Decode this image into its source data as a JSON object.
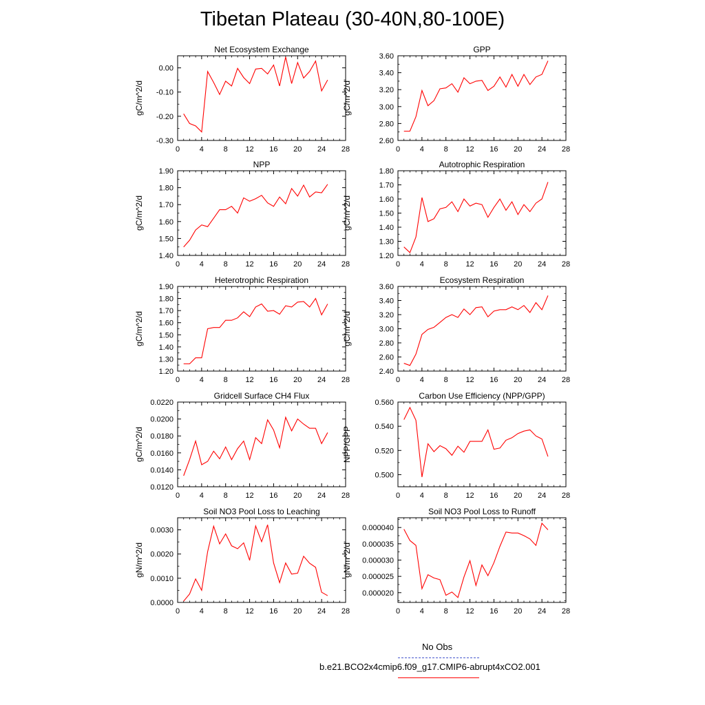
{
  "title": "Tibetan Plateau (30-40N,80-100E)",
  "chart_data": [
    {
      "type": "line",
      "title": "Net Ecosystem Exchange",
      "ylabel": "gC/m^2/d",
      "xlim": [
        0,
        28
      ],
      "ylim": [
        -0.3,
        0.05
      ],
      "xticks": [
        "0",
        "4",
        "8",
        "12",
        "16",
        "20",
        "24",
        "28"
      ],
      "yticks": [
        "0.00",
        "-0.10",
        "-0.20",
        "-0.30"
      ],
      "ytick_values": [
        0.0,
        -0.1,
        -0.2,
        -0.3
      ],
      "x": [
        1,
        2,
        3,
        4,
        5,
        6,
        7,
        8,
        9,
        10,
        11,
        12,
        13,
        14,
        15,
        16,
        17,
        18,
        19,
        20,
        21,
        22,
        23,
        24,
        25
      ],
      "series": [
        {
          "values": [
            -0.19,
            -0.23,
            -0.24,
            -0.265,
            -0.015,
            -0.06,
            -0.11,
            -0.055,
            -0.075,
            -0.002,
            -0.04,
            -0.065,
            -0.005,
            -0.002,
            -0.025,
            0.012,
            -0.075,
            0.045,
            -0.065,
            0.022,
            -0.042,
            -0.015,
            0.028,
            -0.095,
            -0.05
          ],
          "color": "#ff0000"
        }
      ]
    },
    {
      "type": "line",
      "title": "GPP",
      "ylabel": "gC/m^2/d",
      "xlim": [
        0,
        28
      ],
      "ylim": [
        2.6,
        3.6
      ],
      "xticks": [
        "0",
        "4",
        "8",
        "12",
        "16",
        "20",
        "24",
        "28"
      ],
      "yticks": [
        "3.60",
        "3.40",
        "3.20",
        "3.00",
        "2.80",
        "2.60"
      ],
      "ytick_values": [
        3.6,
        3.4,
        3.2,
        3.0,
        2.8,
        2.6
      ],
      "x": [
        1,
        2,
        3,
        4,
        5,
        6,
        7,
        8,
        9,
        10,
        11,
        12,
        13,
        14,
        15,
        16,
        17,
        18,
        19,
        20,
        21,
        22,
        23,
        24,
        25
      ],
      "series": [
        {
          "values": [
            2.71,
            2.71,
            2.88,
            3.19,
            3.01,
            3.07,
            3.21,
            3.22,
            3.27,
            3.17,
            3.34,
            3.27,
            3.3,
            3.31,
            3.19,
            3.24,
            3.35,
            3.23,
            3.38,
            3.24,
            3.38,
            3.26,
            3.35,
            3.38,
            3.54
          ],
          "color": "#ff0000"
        }
      ]
    },
    {
      "type": "line",
      "title": "NPP",
      "ylabel": "gC/m^2/d",
      "xlim": [
        0,
        28
      ],
      "ylim": [
        1.4,
        1.9
      ],
      "xticks": [
        "0",
        "4",
        "8",
        "12",
        "16",
        "20",
        "24",
        "28"
      ],
      "yticks": [
        "1.90",
        "1.80",
        "1.70",
        "1.60",
        "1.50",
        "1.40"
      ],
      "ytick_values": [
        1.9,
        1.8,
        1.7,
        1.6,
        1.5,
        1.4
      ],
      "x": [
        1,
        2,
        3,
        4,
        5,
        6,
        7,
        8,
        9,
        10,
        11,
        12,
        13,
        14,
        15,
        16,
        17,
        18,
        19,
        20,
        21,
        22,
        23,
        24,
        25
      ],
      "series": [
        {
          "values": [
            1.45,
            1.49,
            1.55,
            1.58,
            1.57,
            1.62,
            1.67,
            1.67,
            1.69,
            1.65,
            1.74,
            1.72,
            1.735,
            1.755,
            1.71,
            1.69,
            1.745,
            1.705,
            1.795,
            1.75,
            1.815,
            1.745,
            1.775,
            1.77,
            1.82
          ],
          "color": "#ff0000"
        }
      ]
    },
    {
      "type": "line",
      "title": "Autotrophic Respiration",
      "ylabel": "gC/m^2/d",
      "xlim": [
        0,
        28
      ],
      "ylim": [
        1.2,
        1.8
      ],
      "xticks": [
        "0",
        "4",
        "8",
        "12",
        "16",
        "20",
        "24",
        "28"
      ],
      "yticks": [
        "1.80",
        "1.70",
        "1.60",
        "1.50",
        "1.40",
        "1.30",
        "1.20"
      ],
      "ytick_values": [
        1.8,
        1.7,
        1.6,
        1.5,
        1.4,
        1.3,
        1.2
      ],
      "x": [
        1,
        2,
        3,
        4,
        5,
        6,
        7,
        8,
        9,
        10,
        11,
        12,
        13,
        14,
        15,
        16,
        17,
        18,
        19,
        20,
        21,
        22,
        23,
        24,
        25
      ],
      "series": [
        {
          "values": [
            1.26,
            1.22,
            1.33,
            1.61,
            1.44,
            1.46,
            1.53,
            1.54,
            1.58,
            1.51,
            1.6,
            1.55,
            1.57,
            1.56,
            1.47,
            1.54,
            1.6,
            1.52,
            1.58,
            1.49,
            1.56,
            1.51,
            1.57,
            1.6,
            1.72
          ],
          "color": "#ff0000"
        }
      ]
    },
    {
      "type": "line",
      "title": "Heterotrophic Respiration",
      "ylabel": "gC/m^2/d",
      "xlim": [
        0,
        28
      ],
      "ylim": [
        1.2,
        1.9
      ],
      "xticks": [
        "0",
        "4",
        "8",
        "12",
        "16",
        "20",
        "24",
        "28"
      ],
      "yticks": [
        "1.90",
        "1.80",
        "1.70",
        "1.60",
        "1.50",
        "1.40",
        "1.30",
        "1.20"
      ],
      "ytick_values": [
        1.9,
        1.8,
        1.7,
        1.6,
        1.5,
        1.4,
        1.3,
        1.2
      ],
      "x": [
        1,
        2,
        3,
        4,
        5,
        6,
        7,
        8,
        9,
        10,
        11,
        12,
        13,
        14,
        15,
        16,
        17,
        18,
        19,
        20,
        21,
        22,
        23,
        24,
        25
      ],
      "series": [
        {
          "values": [
            1.26,
            1.26,
            1.31,
            1.31,
            1.55,
            1.56,
            1.56,
            1.62,
            1.62,
            1.64,
            1.69,
            1.65,
            1.73,
            1.755,
            1.695,
            1.7,
            1.67,
            1.74,
            1.73,
            1.77,
            1.775,
            1.73,
            1.8,
            1.665,
            1.755
          ],
          "color": "#ff0000"
        }
      ]
    },
    {
      "type": "line",
      "title": "Ecosystem Respiration",
      "ylabel": "gC/m^2/d",
      "xlim": [
        0,
        28
      ],
      "ylim": [
        2.4,
        3.6
      ],
      "xticks": [
        "0",
        "4",
        "8",
        "12",
        "16",
        "20",
        "24",
        "28"
      ],
      "yticks": [
        "3.60",
        "3.40",
        "3.20",
        "3.00",
        "2.80",
        "2.60",
        "2.40"
      ],
      "ytick_values": [
        3.6,
        3.4,
        3.2,
        3.0,
        2.8,
        2.6,
        2.4
      ],
      "x": [
        1,
        2,
        3,
        4,
        5,
        6,
        7,
        8,
        9,
        10,
        11,
        12,
        13,
        14,
        15,
        16,
        17,
        18,
        19,
        20,
        21,
        22,
        23,
        24,
        25
      ],
      "series": [
        {
          "values": [
            2.51,
            2.48,
            2.64,
            2.92,
            2.99,
            3.02,
            3.09,
            3.16,
            3.2,
            3.16,
            3.28,
            3.2,
            3.3,
            3.31,
            3.17,
            3.25,
            3.27,
            3.27,
            3.31,
            3.27,
            3.33,
            3.23,
            3.37,
            3.27,
            3.47
          ],
          "color": "#ff0000"
        }
      ]
    },
    {
      "type": "line",
      "title": "Gridcell Surface CH4 Flux",
      "ylabel": "gC/m^2/d",
      "xlim": [
        0,
        28
      ],
      "ylim": [
        0.012,
        0.022
      ],
      "xticks": [
        "0",
        "4",
        "8",
        "12",
        "16",
        "20",
        "24",
        "28"
      ],
      "yticks": [
        "0.0220",
        "0.0200",
        "0.0180",
        "0.0160",
        "0.0140",
        "0.0120"
      ],
      "ytick_values": [
        0.022,
        0.02,
        0.018,
        0.016,
        0.014,
        0.012
      ],
      "x": [
        1,
        2,
        3,
        4,
        5,
        6,
        7,
        8,
        9,
        10,
        11,
        12,
        13,
        14,
        15,
        16,
        17,
        18,
        19,
        20,
        21,
        22,
        23,
        24,
        25
      ],
      "series": [
        {
          "values": [
            0.0133,
            0.0152,
            0.0174,
            0.0146,
            0.015,
            0.0162,
            0.0153,
            0.0167,
            0.0152,
            0.0165,
            0.0174,
            0.0152,
            0.0178,
            0.0171,
            0.0199,
            0.0187,
            0.0166,
            0.0202,
            0.0186,
            0.02,
            0.0194,
            0.0189,
            0.0189,
            0.0171,
            0.0184
          ],
          "color": "#ff0000"
        }
      ]
    },
    {
      "type": "line",
      "title": "Carbon Use Efficiency (NPP/GPP)",
      "ylabel": "NPP/GPP",
      "xlim": [
        0,
        28
      ],
      "ylim": [
        0.49,
        0.56
      ],
      "xticks": [
        "0",
        "4",
        "8",
        "12",
        "16",
        "20",
        "24",
        "28"
      ],
      "yticks": [
        "0.560",
        "0.540",
        "0.520",
        "0.500"
      ],
      "ytick_values": [
        0.56,
        0.54,
        0.52,
        0.5
      ],
      "x": [
        1,
        2,
        3,
        4,
        5,
        6,
        7,
        8,
        9,
        10,
        11,
        12,
        13,
        14,
        15,
        16,
        17,
        18,
        19,
        20,
        21,
        22,
        23,
        24,
        25
      ],
      "series": [
        {
          "values": [
            0.5455,
            0.5555,
            0.545,
            0.498,
            0.5255,
            0.519,
            0.524,
            0.5215,
            0.516,
            0.5235,
            0.5185,
            0.5275,
            0.5275,
            0.5275,
            0.537,
            0.521,
            0.522,
            0.5285,
            0.5305,
            0.534,
            0.536,
            0.537,
            0.532,
            0.5295,
            0.515
          ],
          "color": "#ff0000"
        }
      ]
    },
    {
      "type": "line",
      "title": "Soil NO3 Pool Loss to Leaching",
      "ylabel": "gN/m^2/d",
      "xlim": [
        0,
        28
      ],
      "ylim": [
        0.0,
        0.0035
      ],
      "xticks": [
        "0",
        "4",
        "8",
        "12",
        "16",
        "20",
        "24",
        "28"
      ],
      "yticks": [
        "0.0030",
        "0.0020",
        "0.0010",
        "0.0000"
      ],
      "ytick_values": [
        0.003,
        0.002,
        0.001,
        0.0
      ],
      "x": [
        1,
        2,
        3,
        4,
        5,
        6,
        7,
        8,
        9,
        10,
        11,
        12,
        13,
        14,
        15,
        16,
        17,
        18,
        19,
        20,
        21,
        22,
        23,
        24,
        25
      ],
      "series": [
        {
          "values": [
            5e-05,
            0.00035,
            0.00097,
            0.0005,
            0.0021,
            0.00315,
            0.00242,
            0.00283,
            0.00234,
            0.00222,
            0.00246,
            0.00174,
            0.00316,
            0.00251,
            0.00321,
            0.00163,
            0.00082,
            0.00163,
            0.00117,
            0.00121,
            0.00191,
            0.00162,
            0.00145,
            0.00042,
            0.00028
          ],
          "color": "#ff0000"
        }
      ]
    },
    {
      "type": "line",
      "title": "Soil NO3 Pool Loss to Runoff",
      "ylabel": "gN/m^2/d",
      "xlim": [
        0,
        28
      ],
      "ylim": [
        1.7e-05,
        4.3e-05
      ],
      "xticks": [
        "0",
        "4",
        "8",
        "12",
        "16",
        "20",
        "24",
        "28"
      ],
      "yticks": [
        "0.000040",
        "0.000035",
        "0.000030",
        "0.000025",
        "0.000020"
      ],
      "ytick_values": [
        4e-05,
        3.5e-05,
        3e-05,
        2.5e-05,
        2e-05
      ],
      "x": [
        1,
        2,
        3,
        4,
        5,
        6,
        7,
        8,
        9,
        10,
        11,
        12,
        13,
        14,
        15,
        16,
        17,
        18,
        19,
        20,
        21,
        22,
        23,
        24,
        25
      ],
      "series": [
        {
          "values": [
            3.95e-05,
            3.6e-05,
            3.45e-05,
            2.12e-05,
            2.55e-05,
            2.45e-05,
            2.4e-05,
            1.92e-05,
            2.02e-05,
            1.85e-05,
            2.48e-05,
            2.98e-05,
            2.22e-05,
            2.85e-05,
            2.52e-05,
            2.92e-05,
            3.42e-05,
            3.86e-05,
            3.83e-05,
            3.83e-05,
            3.75e-05,
            3.65e-05,
            3.45e-05,
            4.13e-05,
            3.93e-05
          ],
          "color": "#ff0000"
        }
      ]
    }
  ],
  "legend": {
    "obs_label": "No Obs",
    "obs_color": "#4455cc",
    "model_label": "b.e21.BCO2x4cmip6.f09_g17.CMIP6-abrupt4xCO2.001",
    "model_color": "#ff0000"
  }
}
